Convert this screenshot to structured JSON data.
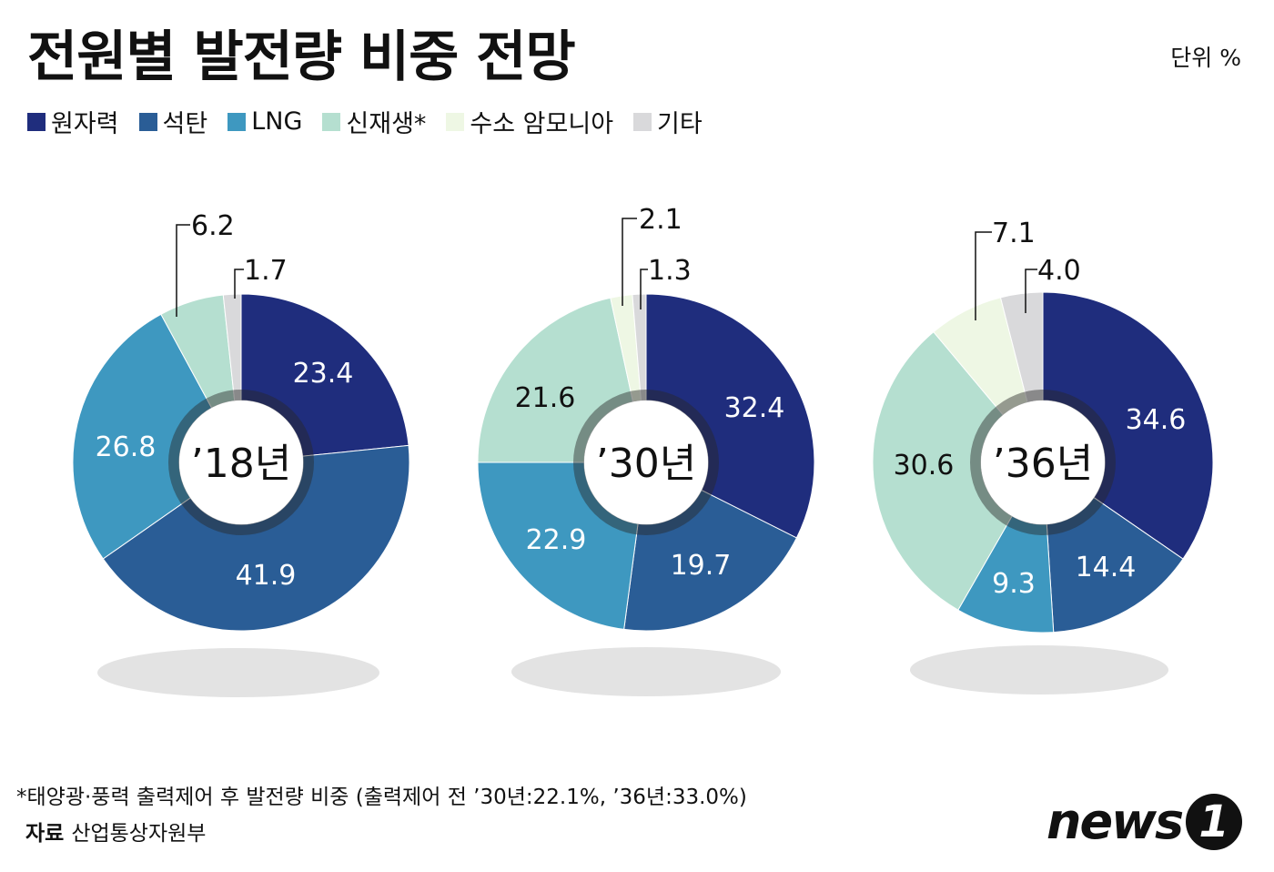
{
  "title": "전원별 발전량 비중 전망",
  "unit": "단위 %",
  "legend": [
    {
      "label": "원자력",
      "color": "#1f2d7d"
    },
    {
      "label": "석탄",
      "color": "#2a5d96"
    },
    {
      "label": "LNG",
      "color": "#3e98c0"
    },
    {
      "label": "신재생*",
      "color": "#b5dfd0"
    },
    {
      "label": "수소 암모니아",
      "color": "#eef7e4"
    },
    {
      "label": "기타",
      "color": "#d9d9db"
    }
  ],
  "chart_data": [
    {
      "type": "pie",
      "title": "’18년",
      "categories": [
        "원자력",
        "석탄",
        "LNG",
        "신재생*",
        "기타"
      ],
      "values": [
        23.4,
        41.9,
        26.8,
        6.2,
        1.7
      ],
      "labels": [
        "23.4",
        "41.9",
        "26.8",
        "6.2",
        "1.7"
      ],
      "colors": [
        "#1f2d7d",
        "#2a5d96",
        "#3e98c0",
        "#b5dfd0",
        "#d9d9db"
      ]
    },
    {
      "type": "pie",
      "title": "’30년",
      "categories": [
        "원자력",
        "석탄",
        "LNG",
        "신재생*",
        "수소 암모니아",
        "기타"
      ],
      "values": [
        32.4,
        19.7,
        22.9,
        21.6,
        2.1,
        1.3
      ],
      "labels": [
        "32.4",
        "19.7",
        "22.9",
        "21.6",
        "2.1",
        "1.3"
      ],
      "colors": [
        "#1f2d7d",
        "#2a5d96",
        "#3e98c0",
        "#b5dfd0",
        "#eef7e4",
        "#d9d9db"
      ]
    },
    {
      "type": "pie",
      "title": "’36년",
      "categories": [
        "원자력",
        "석탄",
        "LNG",
        "신재생*",
        "수소 암모니아",
        "기타"
      ],
      "values": [
        34.6,
        14.4,
        9.3,
        30.6,
        7.1,
        4.0
      ],
      "labels": [
        "34.6",
        "14.4",
        "9.3",
        "30.6",
        "7.1",
        "4.0"
      ],
      "colors": [
        "#1f2d7d",
        "#2a5d96",
        "#3e98c0",
        "#b5dfd0",
        "#eef7e4",
        "#d9d9db"
      ]
    }
  ],
  "footnote": "*태양광·풍력 출력제어 후 발전량 비중 (출력제어 전 ’30년:22.1%, ’36년:33.0%)",
  "source": {
    "label": "자료",
    "value": "산업통상자원부"
  },
  "logo": {
    "text": "news",
    "badge": "1"
  }
}
